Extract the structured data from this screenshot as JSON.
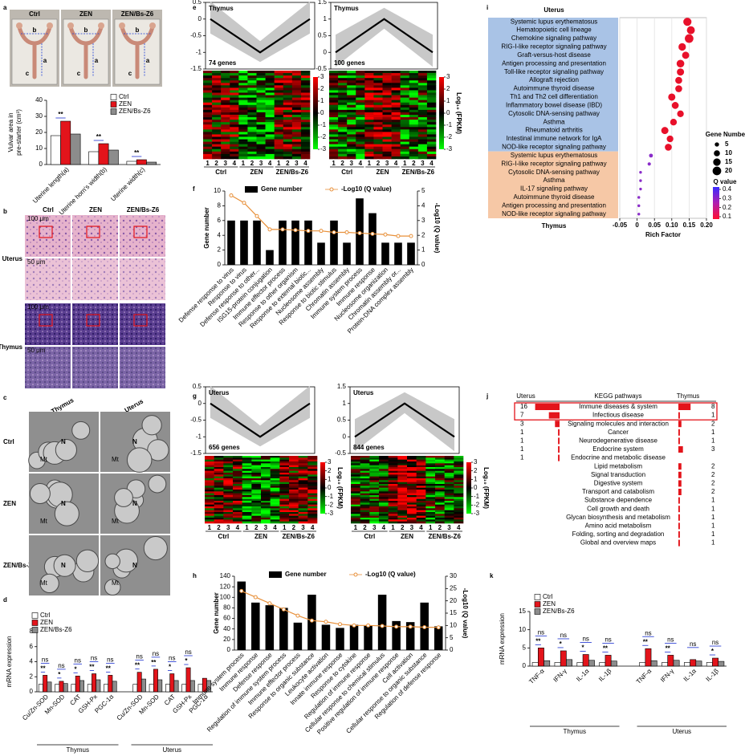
{
  "figure": {
    "panel_labels": [
      "a",
      "b",
      "c",
      "d",
      "e",
      "f",
      "g",
      "h",
      "i",
      "j",
      "k"
    ],
    "photos": {
      "headers": [
        "Ctrl",
        "ZEN",
        "ZEN/Bs-Z6"
      ],
      "marks": [
        "b",
        "a",
        "c"
      ]
    },
    "histology": {
      "headers": [
        "Ctrl",
        "ZEN",
        "ZEN/Bs-Z6"
      ],
      "rows": [
        "Uterus",
        "Thymus"
      ],
      "scales": [
        "100 μm",
        "50 μm"
      ]
    },
    "em": {
      "columns": [
        "Thymus",
        "Uterus"
      ],
      "rows": [
        "Ctrl",
        "ZEN",
        "ZEN/Bs-Z6"
      ],
      "marks": [
        "N",
        "Mt"
      ]
    }
  },
  "chart_data": [
    {
      "type": "bar",
      "ylabel": [
        "Vulvar area in",
        "pre-starter (cm³)"
      ],
      "categories": [
        "Uterine length(a)",
        "Uterine horn's width(b)",
        "Uterine width(c)"
      ],
      "series": [
        {
          "name": "Ctrl",
          "color": "#ffffff",
          "values": [
            18,
            8,
            2
          ]
        },
        {
          "name": "ZEN",
          "color": "#e3141b",
          "values": [
            27,
            13,
            3
          ]
        },
        {
          "name": "ZEN/Bs-Z6",
          "color": "#8c8c8c",
          "values": [
            19,
            9,
            1.5
          ]
        }
      ],
      "ylim": [
        0,
        40
      ],
      "yticks": [
        0,
        10,
        20,
        30,
        40
      ],
      "sig_bottom": [
        "**",
        "**",
        "**"
      ]
    },
    {
      "type": "bar",
      "ylabel": [
        "mRNA expression"
      ],
      "categories": [
        "Cu/Zn-SOD",
        "Mn-SOD",
        "CAT",
        "GSH-Px",
        "PGC-1α",
        "Cu/Zn-SOD",
        "Mn-SOD",
        "CAT",
        "GSH-Px",
        "PGC-1α"
      ],
      "groups": [
        "Thymus",
        "Uterus"
      ],
      "series": [
        {
          "name": "Ctrl",
          "color": "#ffffff",
          "values": [
            1,
            1,
            1,
            1,
            1,
            1,
            1,
            1,
            1,
            1
          ]
        },
        {
          "name": "ZEN",
          "color": "#e3141b",
          "values": [
            2.2,
            1.4,
            2.1,
            2.4,
            2.2,
            2.6,
            3.0,
            2.4,
            3.2,
            1.8
          ]
        },
        {
          "name": "ZEN/Bs-Z6",
          "color": "#8c8c8c",
          "values": [
            1.3,
            1.1,
            1.5,
            1.6,
            1.4,
            1.7,
            1.6,
            1.5,
            1.5,
            1.5
          ]
        }
      ],
      "ylim": [
        0,
        8
      ],
      "yticks": [
        0,
        2,
        4,
        6,
        8
      ],
      "sig_top": [
        "ns",
        "ns",
        "ns",
        "ns",
        "ns",
        "ns",
        "ns",
        "ns",
        "ns",
        null
      ],
      "sig_bottom": [
        "**",
        "*",
        "*",
        "**",
        "**",
        "**",
        "**",
        "*",
        "*",
        null
      ]
    },
    {
      "type": "line",
      "title": "Thymus",
      "annotation": "74 genes",
      "values": [
        0,
        -1,
        0
      ],
      "ylim": [
        -1.5,
        0.5
      ],
      "yticks": [
        0.5,
        0,
        -0.5,
        -1,
        -1.5
      ],
      "heatmap": {
        "columns": [
          "1",
          "2",
          "3",
          "4"
        ],
        "groups": [
          "Ctrl",
          "ZEN",
          "ZEN/Bs-Z6"
        ],
        "colorbar_label": "Log₁₀ (FPKM)",
        "colorbar_ticks": [
          3,
          2,
          1,
          0,
          -1,
          -2,
          -3
        ]
      }
    },
    {
      "type": "line",
      "title": "Thymus",
      "annotation": "100 genes",
      "values": [
        0,
        1,
        0
      ],
      "ylim": [
        -0.5,
        1.5
      ],
      "yticks": [
        1.5,
        1,
        0.5,
        0,
        -0.5
      ],
      "heatmap": {
        "columns": [
          "1",
          "2",
          "3",
          "4"
        ],
        "groups": [
          "Ctrl",
          "ZEN",
          "ZEN/Bs-Z6"
        ],
        "colorbar_label": "Log₁₀ (FPKM)",
        "colorbar_ticks": [
          3,
          2,
          1,
          0,
          -1,
          -2,
          -3
        ]
      }
    },
    {
      "type": "combo",
      "ylabel": "Gene number",
      "y2label": "-Log10 (Q value)",
      "categories": [
        "Defense response to virus",
        "Response to virus",
        "Defense response to other...",
        "ISG15-protein conjugation",
        "Immune effector process",
        "Response to other organism",
        "Response to external biotic...",
        "Nucleosome assembly",
        "Response to biotic stimulus",
        "Chromatin assembly",
        "Immune system process",
        "Immune response",
        "Nucleosome organization",
        "Chromatin assembly or...",
        "Protein-DNA complex assembly"
      ],
      "series": [
        {
          "name": "Gene number",
          "color": "#000000",
          "values": [
            6,
            6,
            6,
            2,
            6,
            6,
            6,
            3,
            6,
            3,
            9,
            7,
            3,
            3,
            3
          ]
        },
        {
          "name": "-Log10 (Q value)",
          "color": "#e8903a",
          "axis": "y2",
          "values": [
            4.7,
            4.2,
            3.3,
            2.4,
            2.4,
            2.35,
            2.3,
            2.3,
            2.2,
            2.2,
            2.15,
            2.1,
            2.05,
            1.95,
            1.95
          ]
        }
      ],
      "ylim": [
        0,
        10
      ],
      "yticks": [
        0,
        2,
        4,
        6,
        8,
        10
      ],
      "y2lim": [
        0,
        5
      ],
      "y2ticks": [
        0,
        1,
        2,
        3,
        4,
        5
      ]
    },
    {
      "type": "line",
      "title": "Uterus",
      "annotation": "656 genes",
      "values": [
        0,
        -1,
        0
      ],
      "ylim": [
        -1.5,
        0.5
      ],
      "yticks": [
        0.5,
        0,
        -0.5,
        -1,
        -1.5
      ],
      "heatmap": {
        "columns": [
          "1",
          "2",
          "3",
          "4"
        ],
        "groups": [
          "Ctrl",
          "ZEN",
          "ZEN/Bs-Z6"
        ],
        "colorbar_label": "Log₁₀ (FPKM)",
        "colorbar_ticks": [
          3,
          2,
          1,
          0,
          -1,
          -2,
          -3
        ]
      }
    },
    {
      "type": "line",
      "title": "Uterus",
      "annotation": "844 genes",
      "values": [
        0,
        1,
        0
      ],
      "ylim": [
        -0.5,
        1.5
      ],
      "yticks": [
        1.5,
        1,
        0.5,
        0,
        -0.5
      ],
      "heatmap": {
        "columns": [
          "1",
          "2",
          "3",
          "4"
        ],
        "groups": [
          "Ctrl",
          "ZEN",
          "ZEN/Bs-Z6"
        ],
        "colorbar_label": "Log₁₀ (FPKM)",
        "colorbar_ticks": [
          3,
          2,
          1,
          0,
          -1,
          -2,
          -3
        ]
      }
    },
    {
      "type": "combo",
      "ylabel": "Gene number",
      "y2label": "-Log10 (Q value)",
      "categories": [
        "Immune system process",
        "Immune response",
        "Defense response",
        "Regulation of immune system process",
        "Immune effector process",
        "Response to organic substance",
        "Leukocyte activation",
        "Innate immune response",
        "Response to cytokine",
        "Regulation of immune response",
        "Cellular response to chemical stimulus",
        "Positive regulation of immune response",
        "Cell activation",
        "Cellular response to organic substance",
        "Regulation of defense response"
      ],
      "series": [
        {
          "name": "Gene number",
          "color": "#000000",
          "values": [
            130,
            90,
            85,
            80,
            52,
            105,
            48,
            42,
            48,
            46,
            105,
            55,
            53,
            90,
            45
          ]
        },
        {
          "name": "-Log10 (Q value)",
          "color": "#e8903a",
          "axis": "y2",
          "values": [
            24,
            21.5,
            19,
            16.5,
            14,
            12,
            11.5,
            10.5,
            10,
            10,
            9.8,
            9.5,
            9.5,
            9.3,
            9.2
          ]
        }
      ],
      "ylim": [
        0,
        140
      ],
      "yticks": [
        0,
        20,
        40,
        60,
        80,
        100,
        120,
        140
      ],
      "y2lim": [
        0,
        30
      ],
      "y2ticks": [
        0,
        5,
        10,
        15,
        20,
        25,
        30
      ]
    },
    {
      "type": "scatter",
      "xlabel": "Rich Factor",
      "xlim": [
        -0.05,
        0.2
      ],
      "xticks": [
        -0.05,
        0,
        0.05,
        {
          "value": 0.1,
          "label": "0.10"
        },
        0.15,
        {
          "value": 0.2,
          "label": "0.20"
        }
      ],
      "grid": true,
      "series": [
        {
          "name": "Uterus",
          "color": "#e8102a",
          "band_color": "#a9c3e6",
          "categories": [
            "Systemic lupus erythematosus",
            "Hematopoietic cell lineage",
            "Chemokine signaling pathway",
            "RIG-I-like receptor signaling pathway",
            "Graft-versus-host disease",
            "Antigen processing and presentation",
            "Toll-like receptor signaling pathway",
            "Allograft rejection",
            "Autoimmune thyroid disease",
            "Th1 and Th2 cell differentiation",
            "Inflammatory bowel disease (IBD)",
            "Cytosolic DNA-sensing pathway",
            "Asthma",
            "Rheumatoid arthritis",
            "Intestinal immune network for IgA",
            "NOD-like receptor signaling pathway"
          ],
          "values": [
            0.145,
            0.155,
            0.15,
            0.13,
            0.14,
            0.125,
            0.125,
            0.12,
            0.12,
            0.1,
            0.11,
            0.125,
            0.105,
            0.08,
            0.095,
            0.09
          ],
          "sizes": [
            18,
            17,
            20,
            15,
            14,
            16,
            14,
            13,
            13,
            14,
            13,
            12,
            12,
            14,
            12,
            13
          ]
        },
        {
          "name": "Thymus",
          "color": "#8a2cc9",
          "band_color": "#f6c8a6",
          "categories": [
            "Systemic lupus erythematosus",
            "RIG-I-like receptor signaling pathway",
            "Cytosolic DNA-sensing pathway",
            "Asthma",
            "IL-17 signaling pathway",
            "Autoimmune thyroid disease",
            "Antigen processing and presentation",
            "NOD-like receptor signaling pathway"
          ],
          "values": [
            0.04,
            0.035,
            0.01,
            0.01,
            0.01,
            0.005,
            0.005,
            0.005
          ],
          "sizes": [
            4,
            3,
            2,
            2,
            2,
            2,
            2,
            2
          ]
        }
      ],
      "size_legend_title": "Gene Number",
      "size_legend": [
        5,
        10,
        15,
        20
      ],
      "color_legend_title": "Q value",
      "color_legend_ticks": [
        0.4,
        0.3,
        0.2,
        0.1
      ]
    },
    {
      "type": "diverging_bar",
      "headers": [
        "Uterus",
        "KEGG pathways",
        "Thymus"
      ],
      "color": "#e3141b",
      "rows": [
        {
          "pathway": "Immune diseases & system",
          "uterus": 16,
          "thymus": 8
        },
        {
          "pathway": "Infectious disease",
          "uterus": 7,
          "thymus": 1
        },
        {
          "pathway": "Signaling molecules and interaction",
          "uterus": 3,
          "thymus": 2
        },
        {
          "pathway": "Cancer",
          "uterus": 1,
          "thymus": 1
        },
        {
          "pathway": "Neurodegenerative disease",
          "uterus": 1,
          "thymus": 1
        },
        {
          "pathway": "Endocrine system",
          "uterus": 1,
          "thymus": 3
        },
        {
          "pathway": "Endocrine and metabolic disease",
          "uterus": 1,
          "thymus": null
        },
        {
          "pathway": "Lipid metabolism",
          "uterus": null,
          "thymus": 2
        },
        {
          "pathway": "Signal transduction",
          "uterus": null,
          "thymus": 2
        },
        {
          "pathway": "Digestive system",
          "uterus": null,
          "thymus": 2
        },
        {
          "pathway": "Transport and catabolism",
          "uterus": null,
          "thymus": 2
        },
        {
          "pathway": "Substance dependence",
          "uterus": null,
          "thymus": 1
        },
        {
          "pathway": "Cell growth and death",
          "uterus": null,
          "thymus": 1
        },
        {
          "pathway": "Glycan biosynthesis and metabolism",
          "uterus": null,
          "thymus": 1
        },
        {
          "pathway": "Amino acid metabolism",
          "uterus": null,
          "thymus": 1
        },
        {
          "pathway": "Folding, sorting and degradation",
          "uterus": null,
          "thymus": 1
        },
        {
          "pathway": "Global and overview maps",
          "uterus": null,
          "thymus": 1
        }
      ]
    },
    {
      "type": "bar",
      "ylabel": [
        "mRNA expression"
      ],
      "categories": [
        "TNF-α",
        "IFN-γ",
        "IL-1α",
        "IL-1β",
        "TNF-α",
        "IFN-γ",
        "IL-1α",
        "IL-1β"
      ],
      "groups": [
        "Thymus",
        "Uterus"
      ],
      "series": [
        {
          "name": "Ctrl",
          "color": "#ffffff",
          "values": [
            1,
            1,
            1,
            1,
            1,
            1,
            1,
            1
          ]
        },
        {
          "name": "ZEN",
          "color": "#e3141b",
          "values": [
            5,
            4.2,
            3.2,
            3,
            4.8,
            3,
            1.8,
            2.2
          ]
        },
        {
          "name": "ZEN/Bs-Z6",
          "color": "#8c8c8c",
          "values": [
            1.5,
            1.8,
            1.6,
            1.4,
            1.5,
            1.6,
            1.4,
            1.3
          ]
        }
      ],
      "ylim": [
        0,
        15
      ],
      "yticks": [
        0,
        5,
        10,
        15
      ],
      "sig_top": [
        "ns",
        "ns",
        "ns",
        "ns",
        "ns",
        "ns",
        "ns",
        "ns"
      ],
      "sig_bottom": [
        "**",
        "*",
        "*",
        "**",
        "**",
        "**",
        null,
        "*"
      ]
    }
  ]
}
